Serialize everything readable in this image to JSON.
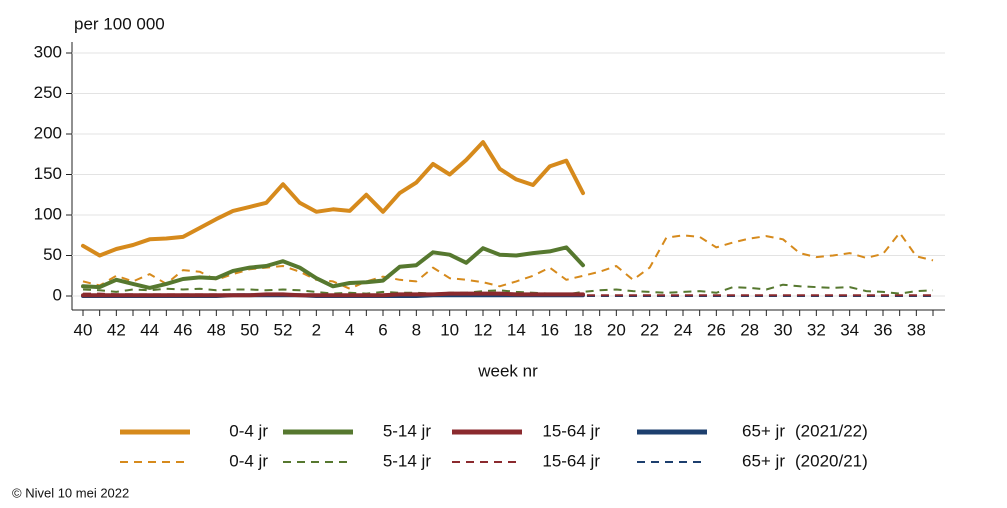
{
  "chart_data": {
    "type": "line",
    "ylabel": "per 100 000",
    "xlabel": "week nr",
    "footer": "© Nivel 10 mei 2022",
    "legend_seasons": [
      "(2021/22)",
      "(2020/21)"
    ],
    "categories": [
      "40",
      null,
      "42",
      null,
      "44",
      null,
      "46",
      null,
      "48",
      null,
      "50",
      null,
      "52",
      null,
      "2",
      null,
      "4",
      null,
      "6",
      null,
      "8",
      null,
      "10",
      null,
      "12",
      null,
      "14",
      null,
      "16",
      null,
      "18",
      null,
      "20",
      null,
      "22",
      null,
      "24",
      null,
      "26",
      null,
      "28",
      null,
      "30",
      null,
      "32",
      null,
      "34",
      null,
      "36",
      null,
      "38",
      null
    ],
    "ylim": [
      0,
      300
    ],
    "yticks": [
      0,
      50,
      100,
      150,
      200,
      250,
      300
    ],
    "grid": true,
    "series": [
      {
        "name": "0-4 jr",
        "color": "#d68a1c",
        "dash": false,
        "values": [
          62,
          50,
          58,
          63,
          70,
          71,
          73,
          84,
          95,
          105,
          110,
          115,
          138,
          115,
          104,
          107,
          105,
          125,
          104,
          127,
          140,
          163,
          150,
          168,
          190,
          157,
          144,
          137,
          160,
          167,
          127,
          null,
          null,
          null,
          null,
          null,
          null,
          null,
          null,
          null,
          null,
          null,
          null,
          null,
          null,
          null,
          null,
          null,
          null,
          null,
          null,
          null
        ]
      },
      {
        "name": "5-14 jr",
        "color": "#56782f",
        "dash": false,
        "values": [
          12,
          11,
          20,
          15,
          10,
          15,
          21,
          23,
          22,
          31,
          35,
          37,
          43,
          35,
          22,
          12,
          16,
          17,
          19,
          36,
          38,
          54,
          51,
          41,
          59,
          51,
          50,
          53,
          55,
          60,
          38,
          null,
          null,
          null,
          null,
          null,
          null,
          null,
          null,
          null,
          null,
          null,
          null,
          null,
          null,
          null,
          null,
          null,
          null,
          null,
          null,
          null
        ]
      },
      {
        "name": "15-64 jr",
        "color": "#8b2a2e",
        "dash": false,
        "values": [
          1,
          1,
          1,
          1,
          1,
          1,
          1,
          1,
          1,
          1,
          1,
          2,
          2,
          1,
          1,
          1,
          1,
          1,
          1,
          2,
          2,
          2,
          3,
          3,
          3,
          3,
          2,
          2,
          2,
          2,
          2,
          null,
          null,
          null,
          null,
          null,
          null,
          null,
          null,
          null,
          null,
          null,
          null,
          null,
          null,
          null,
          null,
          null,
          null,
          null,
          null,
          null
        ]
      },
      {
        "name": "65+ jr",
        "color": "#1d3f6e",
        "dash": false,
        "values": [
          0,
          0,
          0,
          0,
          0,
          0,
          0,
          0,
          0,
          1,
          1,
          1,
          1,
          1,
          0,
          0,
          0,
          0,
          0,
          0,
          0,
          1,
          1,
          1,
          1,
          1,
          1,
          1,
          1,
          1,
          1,
          null,
          null,
          null,
          null,
          null,
          null,
          null,
          null,
          null,
          null,
          null,
          null,
          null,
          null,
          null,
          null,
          null,
          null,
          null,
          null,
          null
        ]
      },
      {
        "name": "0-4 jr",
        "color": "#d68a1c",
        "dash": true,
        "values": [
          18,
          13,
          25,
          18,
          27,
          15,
          32,
          30,
          20,
          27,
          33,
          35,
          37,
          30,
          20,
          18,
          9,
          18,
          24,
          20,
          18,
          35,
          22,
          20,
          17,
          12,
          18,
          25,
          35,
          20,
          25,
          30,
          37,
          20,
          35,
          72,
          75,
          73,
          60,
          66,
          71,
          74,
          70,
          53,
          48,
          50,
          53,
          47,
          52,
          78,
          49,
          44
        ]
      },
      {
        "name": "5-14 jr",
        "color": "#56782f",
        "dash": true,
        "values": [
          8,
          7,
          5,
          8,
          7,
          9,
          8,
          9,
          7,
          8,
          8,
          7,
          8,
          7,
          5,
          3,
          4,
          3,
          5,
          4,
          4,
          3,
          4,
          4,
          6,
          7,
          5,
          4,
          3,
          2,
          5,
          7,
          8,
          6,
          5,
          4,
          5,
          6,
          4,
          11,
          10,
          8,
          14,
          12,
          11,
          10,
          11,
          6,
          5,
          3,
          6,
          7
        ]
      },
      {
        "name": "15-64 jr",
        "color": "#8b2a2e",
        "dash": true,
        "values": [
          3,
          3,
          2,
          2,
          2,
          2,
          2,
          2,
          2,
          2,
          2,
          2,
          2,
          2,
          2,
          1,
          1,
          1,
          1,
          1,
          1,
          1,
          1,
          1,
          1,
          1,
          1,
          1,
          1,
          1,
          1,
          1,
          1,
          1,
          1,
          1,
          1,
          1,
          1,
          1,
          1,
          1,
          1,
          1,
          1,
          1,
          1,
          1,
          1,
          1,
          1,
          1
        ]
      },
      {
        "name": "65+ jr",
        "color": "#1d3f6e",
        "dash": true,
        "values": [
          2,
          2,
          2,
          2,
          1,
          1,
          1,
          1,
          1,
          1,
          1,
          1,
          1,
          1,
          1,
          1,
          1,
          1,
          1,
          1,
          0,
          0,
          0,
          0,
          0,
          0,
          0,
          0,
          0,
          0,
          0,
          0,
          0,
          0,
          0,
          0,
          0,
          0,
          0,
          0,
          0,
          0,
          0,
          0,
          0,
          0,
          0,
          0,
          0,
          0,
          0,
          0
        ]
      }
    ]
  }
}
